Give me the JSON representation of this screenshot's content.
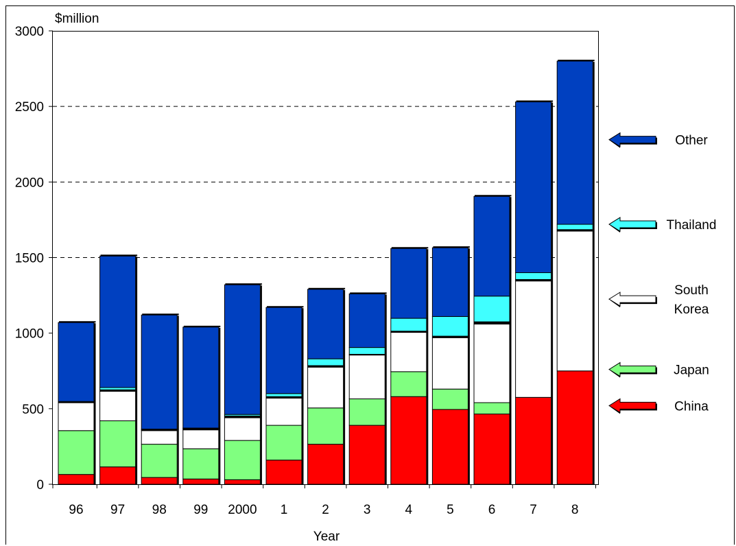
{
  "chart_data": {
    "type": "bar",
    "stacked": true,
    "title": "",
    "ylabel": "$million",
    "xlabel": "Year",
    "ylim": [
      0,
      3000
    ],
    "yticks": [
      0,
      500,
      1000,
      1500,
      2000,
      2500,
      3000
    ],
    "grid": "dashed horizontal at 1500, 2000, 2500",
    "legend_placement": "right, arrows pointing to stacked segments",
    "categories": [
      "96",
      "97",
      "98",
      "99",
      "2000",
      "1",
      "2",
      "3",
      "4",
      "5",
      "6",
      "7",
      "8"
    ],
    "series": [
      {
        "name": "China",
        "color": "#ff0000",
        "values": [
          65,
          115,
          45,
          35,
          30,
          160,
          265,
          390,
          580,
          495,
          465,
          575,
          750
        ]
      },
      {
        "name": "Japan",
        "color": "#80ff80",
        "values": [
          290,
          305,
          220,
          200,
          260,
          230,
          240,
          175,
          165,
          135,
          75,
          0,
          0
        ]
      },
      {
        "name": "South Korea",
        "color": "#ffffff",
        "values": [
          185,
          195,
          90,
          125,
          150,
          180,
          270,
          290,
          260,
          340,
          520,
          770,
          925
        ]
      },
      {
        "name": "",
        "color": "#000000",
        "values": [
          3,
          10,
          8,
          10,
          12,
          10,
          10,
          5,
          8,
          10,
          15,
          10,
          10
        ]
      },
      {
        "name": "Thailand",
        "color": "#40ffff",
        "values": [
          5,
          15,
          2,
          2,
          10,
          20,
          45,
          45,
          85,
          130,
          170,
          45,
          35
        ]
      },
      {
        "name": "Other",
        "color": "#0040c0",
        "values": [
          522,
          870,
          755,
          668,
          858,
          570,
          460,
          355,
          462,
          455,
          660,
          1130,
          1080
        ]
      }
    ],
    "legend": [
      {
        "label_lines": [
          "Other"
        ],
        "color": "#0040c0",
        "at_value": 2280
      },
      {
        "label_lines": [
          "Thailand"
        ],
        "color": "#40ffff",
        "at_value": 1720
      },
      {
        "label_lines": [
          "South",
          "Korea"
        ],
        "color": "#ffffff",
        "at_value": 1225
      },
      {
        "label_lines": [
          "Japan"
        ],
        "color": "#80ff80",
        "at_value": 760
      },
      {
        "label_lines": [
          "China"
        ],
        "color": "#ff0000",
        "at_value": 520
      }
    ]
  }
}
